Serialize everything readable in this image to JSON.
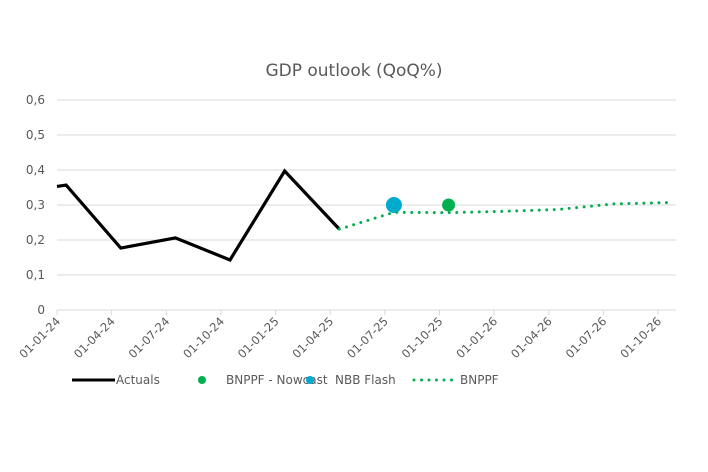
{
  "chart_data": {
    "type": "line",
    "title": "GDP outlook (QoQ%)",
    "xlabel": "",
    "ylabel": "",
    "ylim": [
      0,
      0.6
    ],
    "yticks": [
      {
        "value": 0,
        "label": "0"
      },
      {
        "value": 0.1,
        "label": "0,1"
      },
      {
        "value": 0.2,
        "label": "0,2"
      },
      {
        "value": 0.3,
        "label": "0,3"
      },
      {
        "value": 0.4,
        "label": "0,4"
      },
      {
        "value": 0.5,
        "label": "0,5"
      },
      {
        "value": 0.6,
        "label": "0,6"
      }
    ],
    "xlim_months": [
      0,
      34
    ],
    "xticks": [
      {
        "month": 0,
        "label": "01-01-24"
      },
      {
        "month": 3,
        "label": "01-04-24"
      },
      {
        "month": 6,
        "label": "01-07-24"
      },
      {
        "month": 9,
        "label": "01-10-24"
      },
      {
        "month": 12,
        "label": "01-01-25"
      },
      {
        "month": 15,
        "label": "01-04-25"
      },
      {
        "month": 18,
        "label": "01-07-25"
      },
      {
        "month": 21,
        "label": "01-10-25"
      },
      {
        "month": 24,
        "label": "01-01-26"
      },
      {
        "month": 27,
        "label": "01-04-26"
      },
      {
        "month": 30,
        "label": "01-07-26"
      },
      {
        "month": 33,
        "label": "01-10-26"
      }
    ],
    "grid": true,
    "legend_position": "bottom",
    "series": [
      {
        "name": "Actuals",
        "style": "solid-line",
        "color": "#000000",
        "points": [
          {
            "month": 0,
            "value": 0.353
          },
          {
            "month": 0.5,
            "value": 0.357
          },
          {
            "month": 3.5,
            "value": 0.177
          },
          {
            "month": 6.5,
            "value": 0.206
          },
          {
            "month": 9.5,
            "value": 0.143
          },
          {
            "month": 12.5,
            "value": 0.397
          },
          {
            "month": 15.5,
            "value": 0.231
          }
        ]
      },
      {
        "name": "BNPPF - Nowcast",
        "style": "marker",
        "color": "#00b050",
        "points": [
          {
            "month": 21.5,
            "value": 0.3
          }
        ]
      },
      {
        "name": "NBB Flash",
        "style": "marker",
        "color": "#00a9ce",
        "points": [
          {
            "month": 18.5,
            "value": 0.3
          }
        ]
      },
      {
        "name": "BNPPF",
        "style": "dotted-line",
        "color": "#00b050",
        "points": [
          {
            "month": 15.5,
            "value": 0.231
          },
          {
            "month": 18.5,
            "value": 0.279
          },
          {
            "month": 21.5,
            "value": 0.278
          },
          {
            "month": 24.5,
            "value": 0.282
          },
          {
            "month": 27.5,
            "value": 0.287
          },
          {
            "month": 30.5,
            "value": 0.303
          },
          {
            "month": 33.5,
            "value": 0.307
          }
        ]
      }
    ]
  }
}
